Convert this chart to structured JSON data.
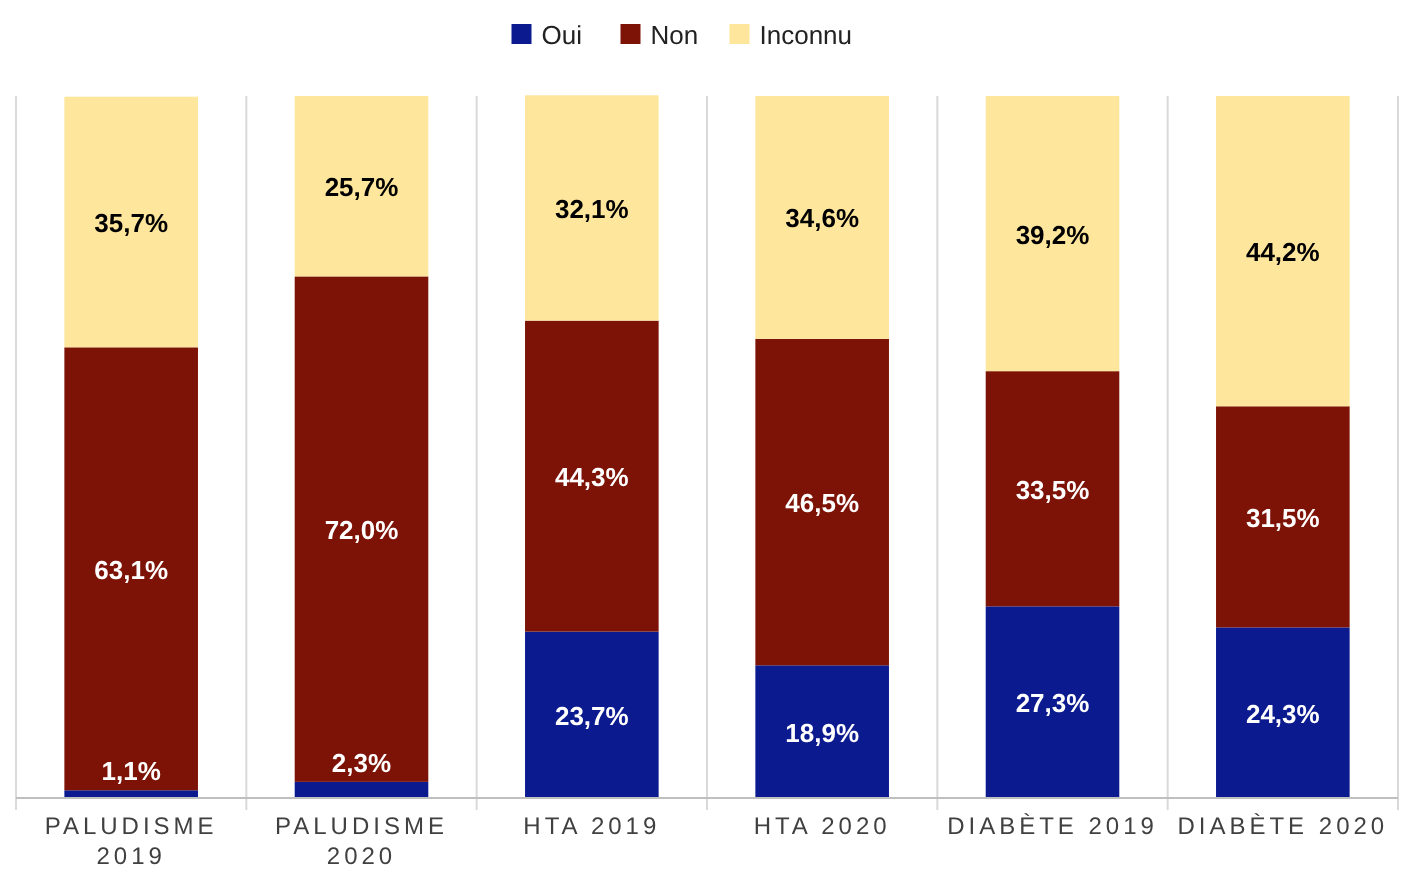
{
  "chart_data": {
    "type": "bar",
    "stacked": true,
    "categories": [
      "PALUDISME 2019",
      "PALUDISME 2020",
      "HTA 2019",
      "HTA 2020",
      "DIABÈTE 2019",
      "DIABÈTE 2020"
    ],
    "ylim": [
      0,
      100
    ],
    "tick_labels": "x",
    "legend": "top",
    "data_labels": true,
    "series": [
      {
        "name": "Oui",
        "color": "#0b1a8f",
        "values": [
          1.1,
          2.3,
          23.7,
          18.9,
          27.3,
          24.3
        ],
        "value_labels": [
          "1,1%",
          "2,3%",
          "23,7%",
          "18,9%",
          "27,3%",
          "24,3%"
        ]
      },
      {
        "name": "Non",
        "color": "#7d1206",
        "values": [
          63.1,
          72.0,
          44.3,
          46.5,
          33.5,
          31.5
        ],
        "value_labels": [
          "63,1%",
          "72,0%",
          "44,3%",
          "46,5%",
          "33,5%",
          "31,5%"
        ]
      },
      {
        "name": "Inconnu",
        "color": "#fee69c",
        "values": [
          35.7,
          25.7,
          32.1,
          34.6,
          39.2,
          44.2
        ],
        "value_labels": [
          "35,7%",
          "25,7%",
          "32,1%",
          "34,6%",
          "39,2%",
          "44,2%"
        ]
      }
    ]
  }
}
